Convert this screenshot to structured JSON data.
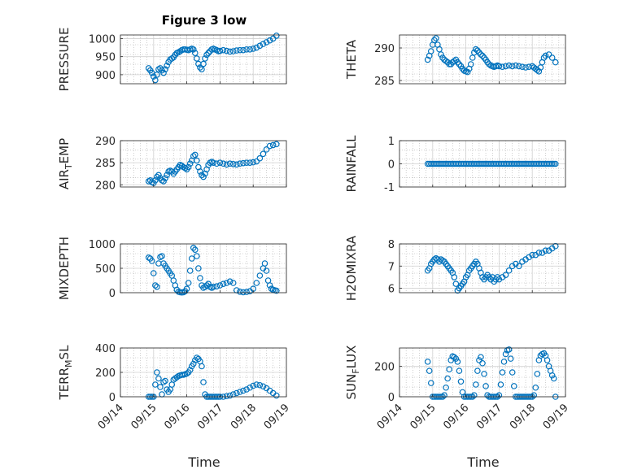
{
  "figure": {
    "title": "Figure 3 low",
    "xlabel": "Time"
  },
  "colors": {
    "marker": "#0072BD",
    "axes": "#262626",
    "grid": "#b0b0b0"
  },
  "chart_data": [
    {
      "type": "scatter",
      "ylabel": "PRESSURE",
      "ylabel_sub": "",
      "ylabel_suffix": "",
      "ylim": [
        875,
        1010
      ],
      "yticks": [
        900,
        950,
        1000
      ],
      "xlim": [
        0,
        5
      ],
      "x": [
        0.85,
        0.9,
        0.95,
        1.0,
        1.05,
        1.1,
        1.15,
        1.2,
        1.25,
        1.3,
        1.35,
        1.4,
        1.45,
        1.5,
        1.55,
        1.6,
        1.65,
        1.7,
        1.75,
        1.8,
        1.85,
        1.9,
        1.95,
        2.0,
        2.05,
        2.1,
        2.15,
        2.2,
        2.25,
        2.3,
        2.35,
        2.4,
        2.45,
        2.5,
        2.55,
        2.6,
        2.65,
        2.7,
        2.75,
        2.8,
        2.85,
        2.9,
        2.95,
        3.0,
        3.1,
        3.2,
        3.3,
        3.4,
        3.5,
        3.6,
        3.7,
        3.8,
        3.9,
        4.0,
        4.1,
        4.2,
        4.3,
        4.4,
        4.5,
        4.6,
        4.7
      ],
      "y": [
        918,
        912,
        905,
        895,
        885,
        900,
        915,
        918,
        912,
        905,
        915,
        925,
        935,
        942,
        945,
        948,
        955,
        960,
        962,
        965,
        968,
        970,
        970,
        969,
        968,
        970,
        972,
        970,
        960,
        945,
        930,
        920,
        915,
        930,
        945,
        955,
        960,
        965,
        970,
        972,
        970,
        968,
        965,
        966,
        968,
        966,
        964,
        965,
        967,
        968,
        968,
        970,
        970,
        972,
        975,
        980,
        985,
        990,
        995,
        1000,
        1008
      ]
    },
    {
      "type": "scatter",
      "ylabel": "THETA",
      "ylabel_sub": "",
      "ylabel_suffix": "",
      "ylim": [
        284.5,
        292
      ],
      "yticks": [
        285,
        290
      ],
      "xlim": [
        0,
        5
      ],
      "x": [
        0.85,
        0.9,
        0.95,
        1.0,
        1.05,
        1.1,
        1.15,
        1.2,
        1.25,
        1.3,
        1.35,
        1.4,
        1.45,
        1.5,
        1.55,
        1.6,
        1.65,
        1.7,
        1.75,
        1.8,
        1.85,
        1.9,
        1.95,
        2.0,
        2.05,
        2.1,
        2.15,
        2.2,
        2.25,
        2.3,
        2.35,
        2.4,
        2.45,
        2.5,
        2.55,
        2.6,
        2.65,
        2.7,
        2.75,
        2.8,
        2.85,
        2.9,
        2.95,
        3.0,
        3.1,
        3.2,
        3.3,
        3.4,
        3.5,
        3.6,
        3.7,
        3.8,
        3.9,
        4.0,
        4.05,
        4.1,
        4.15,
        4.2,
        4.25,
        4.3,
        4.35,
        4.4,
        4.5,
        4.6,
        4.7
      ],
      "y": [
        288.2,
        288.8,
        289.5,
        290.5,
        291.2,
        291.5,
        290.5,
        289.8,
        289.0,
        288.5,
        288.2,
        288.0,
        287.8,
        287.5,
        287.5,
        287.8,
        288.0,
        288.2,
        287.8,
        287.5,
        287.2,
        286.8,
        286.5,
        286.4,
        286.3,
        286.8,
        287.5,
        288.5,
        289.3,
        289.8,
        289.6,
        289.3,
        289.0,
        288.8,
        288.5,
        288.2,
        287.8,
        287.5,
        287.3,
        287.2,
        287.1,
        287.2,
        287.3,
        287.2,
        287.1,
        287.2,
        287.3,
        287.2,
        287.3,
        287.2,
        287.1,
        287.0,
        287.1,
        287.2,
        287.0,
        286.8,
        286.6,
        286.4,
        287.0,
        287.8,
        288.5,
        288.8,
        289.0,
        288.5,
        287.8
      ]
    },
    {
      "type": "scatter",
      "ylabel": "AIR",
      "ylabel_sub": "T",
      "ylabel_suffix": "EMP",
      "ylim": [
        279.5,
        290
      ],
      "yticks": [
        280,
        285,
        290
      ],
      "xlim": [
        0,
        5
      ],
      "x": [
        0.85,
        0.9,
        0.95,
        1.0,
        1.05,
        1.1,
        1.15,
        1.2,
        1.25,
        1.3,
        1.35,
        1.4,
        1.45,
        1.5,
        1.55,
        1.6,
        1.65,
        1.7,
        1.75,
        1.8,
        1.85,
        1.9,
        1.95,
        2.0,
        2.05,
        2.1,
        2.15,
        2.2,
        2.25,
        2.3,
        2.35,
        2.4,
        2.45,
        2.5,
        2.55,
        2.6,
        2.65,
        2.7,
        2.75,
        2.8,
        2.9,
        3.0,
        3.1,
        3.2,
        3.3,
        3.4,
        3.5,
        3.6,
        3.7,
        3.8,
        3.9,
        4.0,
        4.1,
        4.2,
        4.3,
        4.4,
        4.5,
        4.6,
        4.7
      ],
      "y": [
        280.8,
        281.0,
        280.6,
        280.4,
        281.0,
        281.8,
        282.2,
        281.5,
        281.0,
        280.8,
        281.5,
        282.2,
        283.0,
        283.2,
        283.0,
        282.5,
        283.0,
        283.5,
        284.0,
        284.5,
        284.3,
        284.0,
        283.8,
        283.5,
        284.0,
        284.8,
        285.5,
        286.5,
        286.8,
        285.5,
        284.0,
        283.0,
        282.2,
        281.8,
        282.5,
        283.5,
        284.5,
        285.0,
        285.2,
        285.0,
        284.8,
        285.0,
        284.8,
        284.6,
        284.8,
        284.7,
        284.6,
        284.8,
        284.9,
        285.0,
        285.0,
        285.1,
        285.3,
        286.0,
        287.0,
        288.0,
        288.8,
        289.0,
        289.2
      ]
    },
    {
      "type": "scatter",
      "ylabel": "RAINFALL",
      "ylabel_sub": "",
      "ylabel_suffix": "",
      "ylim": [
        -1,
        1
      ],
      "yticks": [
        -1,
        0,
        1
      ],
      "xlim": [
        0,
        5
      ],
      "x": [
        0.85,
        0.9,
        0.95,
        1.0,
        1.05,
        1.1,
        1.15,
        1.2,
        1.25,
        1.3,
        1.35,
        1.4,
        1.45,
        1.5,
        1.55,
        1.6,
        1.65,
        1.7,
        1.75,
        1.8,
        1.85,
        1.9,
        1.95,
        2.0,
        2.05,
        2.1,
        2.15,
        2.2,
        2.25,
        2.3,
        2.35,
        2.4,
        2.45,
        2.5,
        2.55,
        2.6,
        2.65,
        2.7,
        2.75,
        2.8,
        2.85,
        2.9,
        2.95,
        3.0,
        3.05,
        3.1,
        3.15,
        3.2,
        3.25,
        3.3,
        3.35,
        3.4,
        3.45,
        3.5,
        3.55,
        3.6,
        3.65,
        3.7,
        3.75,
        3.8,
        3.85,
        3.9,
        3.95,
        4.0,
        4.05,
        4.1,
        4.15,
        4.2,
        4.25,
        4.3,
        4.35,
        4.4,
        4.45,
        4.5,
        4.55,
        4.6,
        4.65,
        4.7
      ],
      "y": [
        0,
        0,
        0,
        0,
        0,
        0,
        0,
        0,
        0,
        0,
        0,
        0,
        0,
        0,
        0,
        0,
        0,
        0,
        0,
        0,
        0,
        0,
        0,
        0,
        0,
        0,
        0,
        0,
        0,
        0,
        0,
        0,
        0,
        0,
        0,
        0,
        0,
        0,
        0,
        0,
        0,
        0,
        0,
        0,
        0,
        0,
        0,
        0,
        0,
        0,
        0,
        0,
        0,
        0,
        0,
        0,
        0,
        0,
        0,
        0,
        0,
        0,
        0,
        0,
        0,
        0,
        0,
        0,
        0,
        0,
        0,
        0,
        0,
        0,
        0,
        0,
        0,
        0
      ]
    },
    {
      "type": "scatter",
      "ylabel": "MIXDEPTH",
      "ylabel_sub": "",
      "ylabel_suffix": "",
      "ylim": [
        0,
        1000
      ],
      "yticks": [
        0,
        500,
        1000
      ],
      "xlim": [
        0,
        5
      ],
      "x": [
        0.85,
        0.9,
        0.95,
        1.0,
        1.05,
        1.1,
        1.15,
        1.2,
        1.25,
        1.3,
        1.35,
        1.4,
        1.45,
        1.5,
        1.55,
        1.6,
        1.65,
        1.7,
        1.75,
        1.8,
        1.85,
        1.9,
        1.95,
        2.0,
        2.05,
        2.1,
        2.15,
        2.2,
        2.25,
        2.3,
        2.35,
        2.4,
        2.45,
        2.5,
        2.55,
        2.6,
        2.65,
        2.7,
        2.75,
        2.8,
        2.9,
        3.0,
        3.1,
        3.2,
        3.3,
        3.4,
        3.5,
        3.6,
        3.7,
        3.8,
        3.9,
        4.0,
        4.1,
        4.2,
        4.3,
        4.35,
        4.4,
        4.45,
        4.5,
        4.55,
        4.6,
        4.65,
        4.7
      ],
      "y": [
        720,
        700,
        650,
        400,
        150,
        120,
        600,
        730,
        750,
        600,
        550,
        500,
        450,
        400,
        350,
        250,
        150,
        60,
        20,
        10,
        5,
        10,
        30,
        80,
        200,
        450,
        700,
        920,
        880,
        750,
        500,
        300,
        150,
        100,
        120,
        150,
        180,
        120,
        100,
        120,
        130,
        150,
        180,
        200,
        230,
        200,
        50,
        20,
        10,
        15,
        30,
        80,
        200,
        350,
        500,
        600,
        450,
        250,
        150,
        80,
        60,
        50,
        40
      ]
    },
    {
      "type": "scatter",
      "ylabel": "H2OMIXRA",
      "ylabel_sub": "",
      "ylabel_suffix": "",
      "ylim": [
        5.8,
        8
      ],
      "yticks": [
        6,
        7,
        8
      ],
      "xlim": [
        0,
        5
      ],
      "x": [
        0.85,
        0.9,
        0.95,
        1.0,
        1.05,
        1.1,
        1.15,
        1.2,
        1.25,
        1.3,
        1.35,
        1.4,
        1.45,
        1.5,
        1.55,
        1.6,
        1.65,
        1.7,
        1.75,
        1.8,
        1.85,
        1.9,
        1.95,
        2.0,
        2.05,
        2.1,
        2.15,
        2.2,
        2.25,
        2.3,
        2.35,
        2.4,
        2.45,
        2.5,
        2.55,
        2.6,
        2.65,
        2.7,
        2.75,
        2.8,
        2.85,
        2.9,
        2.95,
        3.0,
        3.1,
        3.2,
        3.3,
        3.4,
        3.5,
        3.6,
        3.7,
        3.8,
        3.9,
        4.0,
        4.1,
        4.2,
        4.3,
        4.4,
        4.5,
        4.6,
        4.7
      ],
      "y": [
        6.8,
        6.9,
        7.1,
        7.2,
        7.3,
        7.35,
        7.3,
        7.2,
        7.3,
        7.25,
        7.2,
        7.1,
        7.0,
        6.9,
        6.8,
        6.7,
        6.5,
        6.2,
        5.9,
        6.0,
        6.1,
        6.2,
        6.3,
        6.5,
        6.6,
        6.8,
        6.9,
        7.0,
        7.1,
        7.2,
        7.1,
        6.9,
        6.7,
        6.5,
        6.4,
        6.5,
        6.6,
        6.5,
        6.4,
        6.5,
        6.3,
        6.4,
        6.5,
        6.4,
        6.5,
        6.6,
        6.8,
        7.0,
        7.1,
        7.0,
        7.2,
        7.3,
        7.4,
        7.5,
        7.5,
        7.6,
        7.6,
        7.7,
        7.7,
        7.8,
        7.9
      ]
    },
    {
      "type": "scatter",
      "ylabel": "TERR",
      "ylabel_sub": "M",
      "ylabel_suffix": "SL",
      "ylim": [
        0,
        400
      ],
      "yticks": [
        0,
        200,
        400
      ],
      "xlim": [
        0,
        5
      ],
      "x": [
        0.85,
        0.9,
        0.95,
        1.0,
        1.05,
        1.1,
        1.15,
        1.2,
        1.25,
        1.3,
        1.35,
        1.4,
        1.45,
        1.5,
        1.55,
        1.6,
        1.65,
        1.7,
        1.75,
        1.8,
        1.85,
        1.9,
        1.95,
        2.0,
        2.05,
        2.1,
        2.15,
        2.2,
        2.25,
        2.3,
        2.35,
        2.4,
        2.45,
        2.5,
        2.55,
        2.6,
        2.65,
        2.7,
        2.75,
        2.8,
        2.85,
        2.9,
        2.95,
        3.0,
        3.1,
        3.2,
        3.3,
        3.4,
        3.5,
        3.6,
        3.7,
        3.8,
        3.9,
        4.0,
        4.1,
        4.2,
        4.3,
        4.4,
        4.5,
        4.6,
        4.7
      ],
      "y": [
        0,
        0,
        0,
        0,
        100,
        200,
        150,
        80,
        20,
        120,
        130,
        60,
        40,
        60,
        100,
        140,
        150,
        160,
        170,
        175,
        180,
        180,
        185,
        190,
        200,
        220,
        250,
        270,
        300,
        320,
        310,
        290,
        250,
        120,
        20,
        0,
        0,
        0,
        0,
        0,
        0,
        0,
        0,
        0,
        0,
        5,
        10,
        20,
        30,
        40,
        50,
        60,
        75,
        90,
        100,
        95,
        85,
        70,
        50,
        30,
        10
      ]
    },
    {
      "type": "scatter",
      "ylabel": "SUN",
      "ylabel_sub": "F",
      "ylabel_suffix": "LUX",
      "ylim": [
        0,
        320
      ],
      "yticks": [
        0,
        200
      ],
      "xlim": [
        0,
        5
      ],
      "x": [
        0.85,
        0.9,
        0.95,
        1.0,
        1.05,
        1.1,
        1.15,
        1.2,
        1.25,
        1.3,
        1.35,
        1.4,
        1.45,
        1.5,
        1.55,
        1.6,
        1.65,
        1.7,
        1.75,
        1.8,
        1.85,
        1.9,
        1.95,
        2.0,
        2.05,
        2.1,
        2.15,
        2.2,
        2.25,
        2.3,
        2.35,
        2.4,
        2.45,
        2.5,
        2.55,
        2.6,
        2.65,
        2.7,
        2.75,
        2.8,
        2.85,
        2.9,
        2.95,
        3.0,
        3.05,
        3.1,
        3.15,
        3.2,
        3.25,
        3.3,
        3.35,
        3.4,
        3.45,
        3.5,
        3.55,
        3.6,
        3.65,
        3.7,
        3.75,
        3.8,
        3.85,
        3.9,
        3.95,
        4.0,
        4.05,
        4.1,
        4.15,
        4.2,
        4.25,
        4.3,
        4.35,
        4.4,
        4.45,
        4.5,
        4.55,
        4.6,
        4.65,
        4.7
      ],
      "y": [
        230,
        170,
        90,
        0,
        0,
        0,
        0,
        0,
        0,
        0,
        10,
        60,
        120,
        180,
        240,
        265,
        260,
        250,
        230,
        170,
        100,
        30,
        0,
        0,
        0,
        0,
        0,
        0,
        10,
        80,
        170,
        240,
        260,
        220,
        150,
        70,
        10,
        0,
        0,
        0,
        0,
        0,
        0,
        10,
        80,
        160,
        230,
        280,
        305,
        310,
        250,
        160,
        70,
        0,
        0,
        0,
        0,
        0,
        0,
        0,
        0,
        0,
        0,
        0,
        10,
        60,
        150,
        240,
        270,
        280,
        285,
        270,
        240,
        200,
        170,
        140,
        120,
        0
      ]
    }
  ],
  "x_ticks": [
    "09/14",
    "09/15",
    "09/16",
    "09/17",
    "09/18",
    "09/19"
  ]
}
